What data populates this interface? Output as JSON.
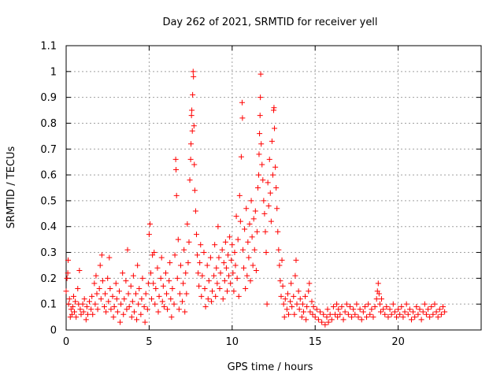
{
  "chart_data": {
    "type": "scatter",
    "title": "Day 262 of 2021, SRMTID for receiver yell",
    "xlabel": "GPS time / hours",
    "ylabel": "SRMTID / TECUs",
    "xlim": [
      0,
      25
    ],
    "ylim": [
      0,
      1.1
    ],
    "xticks": [
      0,
      5,
      10,
      15,
      20
    ],
    "xtick_labels": [
      "0",
      "5",
      "10",
      "15",
      "20"
    ],
    "yticks": [
      0,
      0.1,
      0.2,
      0.3,
      0.4,
      0.5,
      0.6,
      0.7,
      0.8,
      0.9,
      1,
      1.1
    ],
    "ytick_labels": [
      "0",
      "0.1",
      "0.2",
      "0.3",
      "0.4",
      "0.5",
      "0.6",
      "0.7",
      "0.8",
      "0.9",
      "1",
      "1.1"
    ],
    "grid": true,
    "marker": "+",
    "series_color": "#ff0000",
    "points": [
      [
        0.0,
        0.15
      ],
      [
        0.05,
        0.2
      ],
      [
        0.1,
        0.22
      ],
      [
        0.12,
        0.27
      ],
      [
        0.15,
        0.1
      ],
      [
        0.2,
        0.12
      ],
      [
        0.25,
        0.05
      ],
      [
        0.3,
        0.08
      ],
      [
        0.35,
        0.06
      ],
      [
        0.4,
        0.09
      ],
      [
        0.45,
        0.13
      ],
      [
        0.5,
        0.07
      ],
      [
        0.55,
        0.11
      ],
      [
        0.6,
        0.05
      ],
      [
        0.7,
        0.16
      ],
      [
        0.75,
        0.1
      ],
      [
        0.8,
        0.23
      ],
      [
        0.85,
        0.08
      ],
      [
        0.9,
        0.06
      ],
      [
        1.0,
        0.1
      ],
      [
        1.05,
        0.07
      ],
      [
        1.1,
        0.12
      ],
      [
        1.2,
        0.04
      ],
      [
        1.25,
        0.09
      ],
      [
        1.3,
        0.06
      ],
      [
        1.4,
        0.11
      ],
      [
        1.5,
        0.08
      ],
      [
        1.55,
        0.13
      ],
      [
        1.6,
        0.06
      ],
      [
        1.7,
        0.18
      ],
      [
        1.75,
        0.1
      ],
      [
        1.8,
        0.21
      ],
      [
        1.85,
        0.14
      ],
      [
        1.9,
        0.08
      ],
      [
        2.0,
        0.16
      ],
      [
        2.05,
        0.25
      ],
      [
        2.1,
        0.12
      ],
      [
        2.15,
        0.29
      ],
      [
        2.2,
        0.19
      ],
      [
        2.3,
        0.09
      ],
      [
        2.35,
        0.14
      ],
      [
        2.4,
        0.07
      ],
      [
        2.5,
        0.2
      ],
      [
        2.55,
        0.11
      ],
      [
        2.6,
        0.28
      ],
      [
        2.65,
        0.16
      ],
      [
        2.7,
        0.08
      ],
      [
        2.8,
        0.13
      ],
      [
        2.85,
        0.05
      ],
      [
        2.9,
        0.09
      ],
      [
        3.0,
        0.18
      ],
      [
        3.05,
        0.12
      ],
      [
        3.1,
        0.07
      ],
      [
        3.2,
        0.15
      ],
      [
        3.25,
        0.03
      ],
      [
        3.3,
        0.1
      ],
      [
        3.4,
        0.22
      ],
      [
        3.45,
        0.06
      ],
      [
        3.5,
        0.12
      ],
      [
        3.6,
        0.19
      ],
      [
        3.65,
        0.08
      ],
      [
        3.7,
        0.31
      ],
      [
        3.75,
        0.14
      ],
      [
        3.8,
        0.09
      ],
      [
        3.9,
        0.17
      ],
      [
        3.95,
        0.05
      ],
      [
        4.0,
        0.11
      ],
      [
        4.05,
        0.21
      ],
      [
        4.1,
        0.07
      ],
      [
        4.2,
        0.14
      ],
      [
        4.25,
        0.04
      ],
      [
        4.3,
        0.25
      ],
      [
        4.35,
        0.1
      ],
      [
        4.4,
        0.16
      ],
      [
        4.5,
        0.06
      ],
      [
        4.55,
        0.12
      ],
      [
        4.6,
        0.2
      ],
      [
        4.7,
        0.09
      ],
      [
        4.75,
        0.03
      ],
      [
        4.8,
        0.14
      ],
      [
        4.9,
        0.08
      ],
      [
        4.95,
        0.18
      ],
      [
        5.0,
        0.37
      ],
      [
        5.05,
        0.41
      ],
      [
        5.1,
        0.22
      ],
      [
        5.15,
        0.12
      ],
      [
        5.2,
        0.29
      ],
      [
        5.25,
        0.18
      ],
      [
        5.3,
        0.3
      ],
      [
        5.35,
        0.1
      ],
      [
        5.4,
        0.16
      ],
      [
        5.5,
        0.24
      ],
      [
        5.55,
        0.07
      ],
      [
        5.6,
        0.13
      ],
      [
        5.7,
        0.2
      ],
      [
        5.75,
        0.28
      ],
      [
        5.8,
        0.11
      ],
      [
        5.85,
        0.17
      ],
      [
        5.9,
        0.09
      ],
      [
        6.0,
        0.22
      ],
      [
        6.05,
        0.14
      ],
      [
        6.1,
        0.08
      ],
      [
        6.2,
        0.19
      ],
      [
        6.25,
        0.26
      ],
      [
        6.3,
        0.12
      ],
      [
        6.35,
        0.05
      ],
      [
        6.4,
        0.16
      ],
      [
        6.5,
        0.1
      ],
      [
        6.55,
        0.29
      ],
      [
        6.6,
        0.66
      ],
      [
        6.62,
        0.62
      ],
      [
        6.65,
        0.52
      ],
      [
        6.7,
        0.2
      ],
      [
        6.75,
        0.35
      ],
      [
        6.8,
        0.08
      ],
      [
        6.85,
        0.14
      ],
      [
        6.9,
        0.25
      ],
      [
        7.0,
        0.11
      ],
      [
        7.05,
        0.18
      ],
      [
        7.1,
        0.31
      ],
      [
        7.15,
        0.07
      ],
      [
        7.2,
        0.22
      ],
      [
        7.25,
        0.14
      ],
      [
        7.3,
        0.41
      ],
      [
        7.35,
        0.26
      ],
      [
        7.4,
        0.34
      ],
      [
        7.45,
        0.58
      ],
      [
        7.5,
        0.66
      ],
      [
        7.52,
        0.72
      ],
      [
        7.55,
        0.83
      ],
      [
        7.57,
        0.85
      ],
      [
        7.6,
        0.77
      ],
      [
        7.62,
        0.91
      ],
      [
        7.65,
        1.0
      ],
      [
        7.67,
        0.98
      ],
      [
        7.7,
        0.79
      ],
      [
        7.72,
        0.64
      ],
      [
        7.75,
        0.54
      ],
      [
        7.8,
        0.46
      ],
      [
        7.85,
        0.37
      ],
      [
        7.9,
        0.29
      ],
      [
        7.95,
        0.22
      ],
      [
        8.0,
        0.17
      ],
      [
        8.05,
        0.26
      ],
      [
        8.1,
        0.33
      ],
      [
        8.15,
        0.13
      ],
      [
        8.2,
        0.21
      ],
      [
        8.3,
        0.3
      ],
      [
        8.35,
        0.16
      ],
      [
        8.4,
        0.09
      ],
      [
        8.5,
        0.25
      ],
      [
        8.55,
        0.12
      ],
      [
        8.6,
        0.19
      ],
      [
        8.7,
        0.28
      ],
      [
        8.75,
        0.11
      ],
      [
        8.8,
        0.15
      ],
      [
        8.9,
        0.21
      ],
      [
        8.95,
        0.33
      ],
      [
        9.0,
        0.13
      ],
      [
        9.05,
        0.24
      ],
      [
        9.1,
        0.18
      ],
      [
        9.15,
        0.4
      ],
      [
        9.2,
        0.28
      ],
      [
        9.25,
        0.16
      ],
      [
        9.3,
        0.22
      ],
      [
        9.4,
        0.31
      ],
      [
        9.45,
        0.12
      ],
      [
        9.5,
        0.26
      ],
      [
        9.55,
        0.19
      ],
      [
        9.6,
        0.34
      ],
      [
        9.65,
        0.24
      ],
      [
        9.7,
        0.15
      ],
      [
        9.75,
        0.29
      ],
      [
        9.8,
        0.21
      ],
      [
        9.85,
        0.36
      ],
      [
        9.9,
        0.18
      ],
      [
        9.95,
        0.27
      ],
      [
        10.0,
        0.33
      ],
      [
        10.05,
        0.22
      ],
      [
        10.1,
        0.15
      ],
      [
        10.15,
        0.3
      ],
      [
        10.2,
        0.25
      ],
      [
        10.25,
        0.44
      ],
      [
        10.3,
        0.2
      ],
      [
        10.35,
        0.35
      ],
      [
        10.4,
        0.13
      ],
      [
        10.45,
        0.52
      ],
      [
        10.5,
        0.42
      ],
      [
        10.55,
        0.67
      ],
      [
        10.6,
        0.88
      ],
      [
        10.62,
        0.82
      ],
      [
        10.65,
        0.31
      ],
      [
        10.7,
        0.24
      ],
      [
        10.75,
        0.39
      ],
      [
        10.8,
        0.16
      ],
      [
        10.85,
        0.47
      ],
      [
        10.9,
        0.21
      ],
      [
        10.95,
        0.34
      ],
      [
        11.0,
        0.28
      ],
      [
        11.05,
        0.41
      ],
      [
        11.1,
        0.19
      ],
      [
        11.15,
        0.5
      ],
      [
        11.2,
        0.36
      ],
      [
        11.25,
        0.25
      ],
      [
        11.3,
        0.43
      ],
      [
        11.35,
        0.31
      ],
      [
        11.4,
        0.46
      ],
      [
        11.45,
        0.23
      ],
      [
        11.5,
        0.38
      ],
      [
        11.55,
        0.55
      ],
      [
        11.6,
        0.6
      ],
      [
        11.62,
        0.68
      ],
      [
        11.65,
        0.76
      ],
      [
        11.68,
        0.83
      ],
      [
        11.7,
        0.9
      ],
      [
        11.72,
        0.99
      ],
      [
        11.75,
        0.72
      ],
      [
        11.8,
        0.64
      ],
      [
        11.85,
        0.58
      ],
      [
        11.9,
        0.5
      ],
      [
        11.95,
        0.45
      ],
      [
        12.0,
        0.38
      ],
      [
        12.05,
        0.3
      ],
      [
        12.1,
        0.1
      ],
      [
        12.15,
        0.57
      ],
      [
        12.2,
        0.48
      ],
      [
        12.25,
        0.66
      ],
      [
        12.3,
        0.53
      ],
      [
        12.35,
        0.42
      ],
      [
        12.4,
        0.73
      ],
      [
        12.45,
        0.6
      ],
      [
        12.5,
        0.85
      ],
      [
        12.52,
        0.86
      ],
      [
        12.55,
        0.78
      ],
      [
        12.6,
        0.63
      ],
      [
        12.65,
        0.55
      ],
      [
        12.7,
        0.47
      ],
      [
        12.75,
        0.38
      ],
      [
        12.8,
        0.31
      ],
      [
        12.85,
        0.25
      ],
      [
        12.9,
        0.19
      ],
      [
        12.95,
        0.13
      ],
      [
        13.0,
        0.27
      ],
      [
        13.05,
        0.17
      ],
      [
        13.1,
        0.1
      ],
      [
        13.15,
        0.05
      ],
      [
        13.2,
        0.12
      ],
      [
        13.3,
        0.08
      ],
      [
        13.35,
        0.14
      ],
      [
        13.4,
        0.06
      ],
      [
        13.5,
        0.11
      ],
      [
        13.55,
        0.18
      ],
      [
        13.6,
        0.09
      ],
      [
        13.7,
        0.13
      ],
      [
        13.75,
        0.06
      ],
      [
        13.8,
        0.21
      ],
      [
        13.85,
        0.27
      ],
      [
        13.9,
        0.1
      ],
      [
        14.0,
        0.15
      ],
      [
        14.05,
        0.08
      ],
      [
        14.1,
        0.12
      ],
      [
        14.2,
        0.05
      ],
      [
        14.25,
        0.1
      ],
      [
        14.3,
        0.07
      ],
      [
        14.4,
        0.13
      ],
      [
        14.45,
        0.04
      ],
      [
        14.5,
        0.09
      ],
      [
        14.6,
        0.15
      ],
      [
        14.65,
        0.18
      ],
      [
        14.7,
        0.07
      ],
      [
        14.8,
        0.11
      ],
      [
        14.85,
        0.06
      ],
      [
        14.9,
        0.09
      ],
      [
        15.0,
        0.05
      ],
      [
        15.1,
        0.08
      ],
      [
        15.2,
        0.04
      ],
      [
        15.3,
        0.07
      ],
      [
        15.4,
        0.03
      ],
      [
        15.5,
        0.06
      ],
      [
        15.6,
        0.02
      ],
      [
        15.7,
        0.05
      ],
      [
        15.75,
        0.08
      ],
      [
        15.8,
        0.03
      ],
      [
        15.9,
        0.06
      ],
      [
        16.0,
        0.04
      ],
      [
        16.1,
        0.09
      ],
      [
        16.2,
        0.06
      ],
      [
        16.3,
        0.1
      ],
      [
        16.35,
        0.05
      ],
      [
        16.4,
        0.08
      ],
      [
        16.5,
        0.06
      ],
      [
        16.6,
        0.09
      ],
      [
        16.7,
        0.04
      ],
      [
        16.8,
        0.07
      ],
      [
        16.9,
        0.1
      ],
      [
        17.0,
        0.06
      ],
      [
        17.1,
        0.09
      ],
      [
        17.2,
        0.05
      ],
      [
        17.3,
        0.08
      ],
      [
        17.4,
        0.06
      ],
      [
        17.5,
        0.1
      ],
      [
        17.6,
        0.05
      ],
      [
        17.7,
        0.08
      ],
      [
        17.8,
        0.04
      ],
      [
        17.9,
        0.07
      ],
      [
        18.0,
        0.09
      ],
      [
        18.1,
        0.05
      ],
      [
        18.2,
        0.1
      ],
      [
        18.3,
        0.06
      ],
      [
        18.4,
        0.08
      ],
      [
        18.5,
        0.05
      ],
      [
        18.6,
        0.09
      ],
      [
        18.7,
        0.12
      ],
      [
        18.75,
        0.15
      ],
      [
        18.8,
        0.18
      ],
      [
        18.85,
        0.14
      ],
      [
        18.9,
        0.1
      ],
      [
        18.95,
        0.07
      ],
      [
        19.0,
        0.12
      ],
      [
        19.1,
        0.08
      ],
      [
        19.2,
        0.06
      ],
      [
        19.3,
        0.09
      ],
      [
        19.4,
        0.05
      ],
      [
        19.5,
        0.08
      ],
      [
        19.6,
        0.06
      ],
      [
        19.7,
        0.1
      ],
      [
        19.8,
        0.07
      ],
      [
        19.9,
        0.05
      ],
      [
        20.0,
        0.08
      ],
      [
        20.1,
        0.06
      ],
      [
        20.2,
        0.09
      ],
      [
        20.3,
        0.05
      ],
      [
        20.4,
        0.07
      ],
      [
        20.5,
        0.1
      ],
      [
        20.6,
        0.06
      ],
      [
        20.7,
        0.08
      ],
      [
        20.8,
        0.04
      ],
      [
        20.9,
        0.07
      ],
      [
        21.0,
        0.05
      ],
      [
        21.1,
        0.09
      ],
      [
        21.2,
        0.06
      ],
      [
        21.3,
        0.08
      ],
      [
        21.4,
        0.04
      ],
      [
        21.5,
        0.07
      ],
      [
        21.6,
        0.1
      ],
      [
        21.7,
        0.06
      ],
      [
        21.8,
        0.08
      ],
      [
        21.9,
        0.05
      ],
      [
        22.0,
        0.09
      ],
      [
        22.1,
        0.06
      ],
      [
        22.2,
        0.1
      ],
      [
        22.3,
        0.07
      ],
      [
        22.4,
        0.05
      ],
      [
        22.5,
        0.08
      ],
      [
        22.6,
        0.06
      ],
      [
        22.7,
        0.09
      ],
      [
        22.8,
        0.07
      ]
    ]
  }
}
